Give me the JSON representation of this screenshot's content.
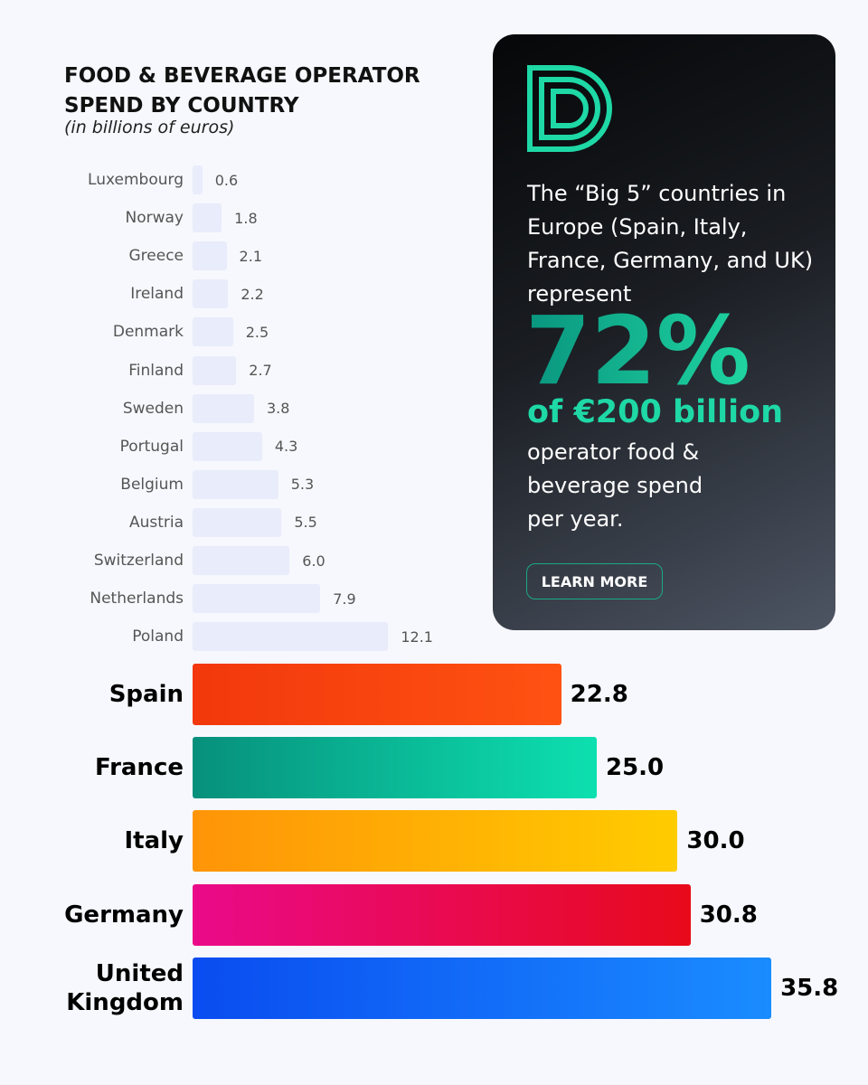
{
  "chart_data": {
    "type": "bar",
    "title": "FOOD & BEVERAGE OPERATOR SPEND BY COUNTRY",
    "subtitle": "(in billions of euros)",
    "categories": [
      "Luxembourg",
      "Norway",
      "Greece",
      "Ireland",
      "Denmark",
      "Finland",
      "Sweden",
      "Portugal",
      "Belgium",
      "Austria",
      "Switzerland",
      "Netherlands",
      "Poland",
      "Spain",
      "France",
      "Italy",
      "Germany",
      "United Kingdom"
    ],
    "values": [
      0.6,
      1.8,
      2.1,
      2.2,
      2.5,
      2.7,
      3.8,
      4.3,
      5.3,
      5.5,
      6,
      7.9,
      12.1,
      22.8,
      25,
      30,
      30.8,
      35.8
    ],
    "value_labels": [
      "0.6",
      "1.8",
      "2.1",
      "2.2",
      "2.5",
      "2.7",
      "3.8",
      "4.3",
      "5.3",
      "5.5",
      "6.0",
      "7.9",
      "12.1",
      "22.8",
      "25.0",
      "30.0",
      "30.8",
      "35.8"
    ],
    "colors": [
      [
        "#e8ecfb",
        "#e8ecfb"
      ],
      [
        "#e8ecfb",
        "#e8ecfb"
      ],
      [
        "#e8ecfb",
        "#e8ecfb"
      ],
      [
        "#e8ecfb",
        "#e8ecfb"
      ],
      [
        "#e8ecfb",
        "#e8ecfb"
      ],
      [
        "#e8ecfb",
        "#e8ecfb"
      ],
      [
        "#e8ecfb",
        "#e8ecfb"
      ],
      [
        "#e8ecfb",
        "#e8ecfb"
      ],
      [
        "#e8ecfb",
        "#e8ecfb"
      ],
      [
        "#e8ecfb",
        "#e8ecfb"
      ],
      [
        "#e8ecfb",
        "#e8ecfb"
      ],
      [
        "#e8ecfb",
        "#e8ecfb"
      ],
      [
        "#e8ecfb",
        "#e8ecfb"
      ],
      [
        "#f2380c",
        "#ff5212"
      ],
      [
        "#07907c",
        "#0de0b0"
      ],
      [
        "#ff9408",
        "#ffcc00"
      ],
      [
        "#ea0a8a",
        "#e80a1a"
      ],
      [
        "#0a4cf0",
        "#1a8cff"
      ]
    ],
    "callout": {
      "lead": "The “Big 5” countries in Europe (Spain, Italy, France, Germany, and UK) represent",
      "figure": "72%",
      "highlight": "of €200 billion",
      "tail": "operator food & beverage spend per year.",
      "button": "LEARN MORE"
    }
  }
}
